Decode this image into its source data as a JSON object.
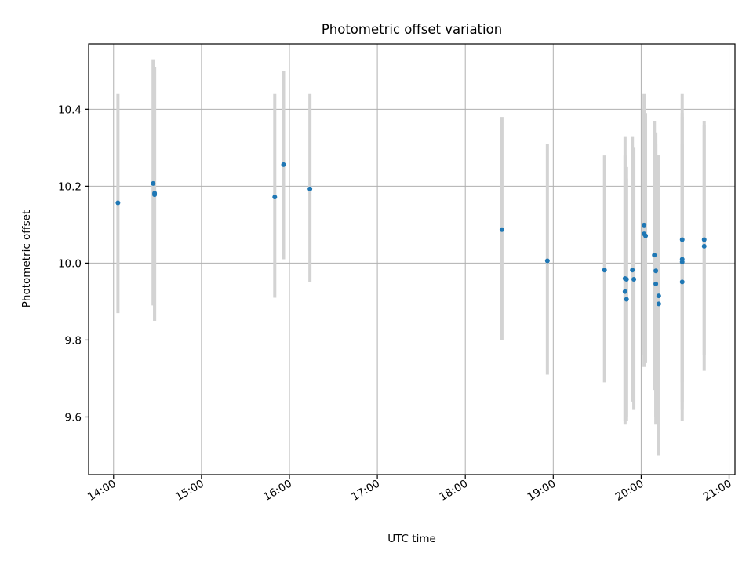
{
  "chart_data": {
    "type": "scatter",
    "title": "Photometric offset variation",
    "xlabel": "UTC time",
    "ylabel": "Photometric offset",
    "x_tick_labels": [
      "14:00",
      "15:00",
      "16:00",
      "17:00",
      "18:00",
      "19:00",
      "20:00",
      "21:00"
    ],
    "y_ticks": [
      9.6,
      9.8,
      10.0,
      10.2,
      10.4
    ],
    "y_tick_labels": [
      "9.6",
      "9.8",
      "10.0",
      "10.2",
      "10.4"
    ],
    "xlim": [
      "13:43",
      "21:04"
    ],
    "ylim": [
      9.45,
      10.57
    ],
    "grid": true,
    "colors": {
      "point": "#1f77b4",
      "errorbar": "#d3d3d3",
      "grid": "#b0b0b0",
      "axes": "#000000"
    },
    "points": [
      {
        "x": "14:03",
        "y": 10.157,
        "ylow": 9.87,
        "yhigh": 10.44
      },
      {
        "x": "14:27",
        "y": 10.207,
        "ylow": 9.89,
        "yhigh": 10.53
      },
      {
        "x": "14:28",
        "y": 10.182,
        "ylow": 9.85,
        "yhigh": 10.51
      },
      {
        "x": "14:28",
        "y": 10.178,
        "ylow": 9.85,
        "yhigh": 10.51
      },
      {
        "x": "15:50",
        "y": 10.172,
        "ylow": 9.91,
        "yhigh": 10.44
      },
      {
        "x": "15:56",
        "y": 10.256,
        "ylow": 10.01,
        "yhigh": 10.5
      },
      {
        "x": "16:14",
        "y": 10.193,
        "ylow": 9.95,
        "yhigh": 10.44
      },
      {
        "x": "18:25",
        "y": 10.087,
        "ylow": 9.8,
        "yhigh": 10.38
      },
      {
        "x": "18:56",
        "y": 10.006,
        "ylow": 9.71,
        "yhigh": 10.31
      },
      {
        "x": "19:35",
        "y": 9.982,
        "ylow": 9.69,
        "yhigh": 10.28
      },
      {
        "x": "19:49",
        "y": 9.96,
        "ylow": 9.58,
        "yhigh": 10.33
      },
      {
        "x": "19:49",
        "y": 9.926,
        "ylow": 9.59,
        "yhigh": 10.28
      },
      {
        "x": "19:50",
        "y": 9.906,
        "ylow": 9.59,
        "yhigh": 10.22
      },
      {
        "x": "19:50",
        "y": 9.958,
        "ylow": 9.6,
        "yhigh": 10.25
      },
      {
        "x": "19:54",
        "y": 9.982,
        "ylow": 9.64,
        "yhigh": 10.33
      },
      {
        "x": "19:55",
        "y": 9.958,
        "ylow": 9.62,
        "yhigh": 10.3
      },
      {
        "x": "20:02",
        "y": 10.099,
        "ylow": 9.76,
        "yhigh": 10.44
      },
      {
        "x": "20:02",
        "y": 10.076,
        "ylow": 9.73,
        "yhigh": 10.4
      },
      {
        "x": "20:03",
        "y": 10.071,
        "ylow": 9.74,
        "yhigh": 10.39
      },
      {
        "x": "20:09",
        "y": 10.021,
        "ylow": 9.67,
        "yhigh": 10.37
      },
      {
        "x": "20:10",
        "y": 9.98,
        "ylow": 9.58,
        "yhigh": 10.34
      },
      {
        "x": "20:10",
        "y": 9.946,
        "ylow": 9.6,
        "yhigh": 10.31
      },
      {
        "x": "20:12",
        "y": 9.915,
        "ylow": 9.55,
        "yhigh": 10.28
      },
      {
        "x": "20:12",
        "y": 9.894,
        "ylow": 9.5,
        "yhigh": 10.28
      },
      {
        "x": "20:28",
        "y": 10.061,
        "ylow": 9.69,
        "yhigh": 10.44
      },
      {
        "x": "20:28",
        "y": 10.01,
        "ylow": 9.64,
        "yhigh": 10.39
      },
      {
        "x": "20:28",
        "y": 10.003,
        "ylow": 9.62,
        "yhigh": 10.38
      },
      {
        "x": "20:28",
        "y": 9.951,
        "ylow": 9.59,
        "yhigh": 10.31
      },
      {
        "x": "20:43",
        "y": 10.061,
        "ylow": 9.76,
        "yhigh": 10.37
      },
      {
        "x": "20:43",
        "y": 10.044,
        "ylow": 9.72,
        "yhigh": 10.36
      }
    ]
  }
}
